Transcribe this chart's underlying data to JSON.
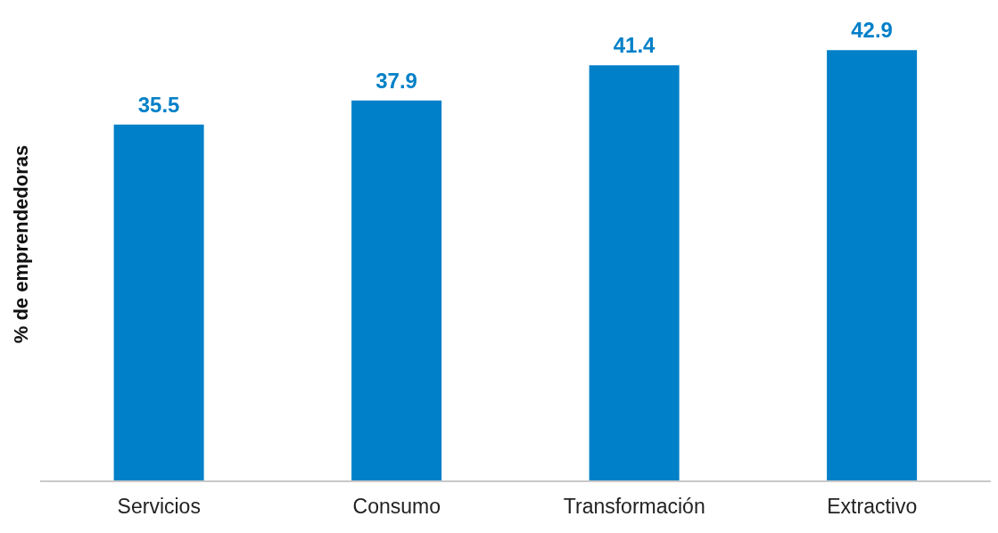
{
  "chart_data": {
    "type": "bar",
    "ylabel": "% de emprendedoras",
    "categories": [
      "Servicios",
      "Consumo",
      "Transformación",
      "Extractivo"
    ],
    "values": [
      35.5,
      37.9,
      41.4,
      42.9
    ],
    "color": "#0080c8",
    "data_labels": true,
    "grid": false,
    "legend": false
  }
}
